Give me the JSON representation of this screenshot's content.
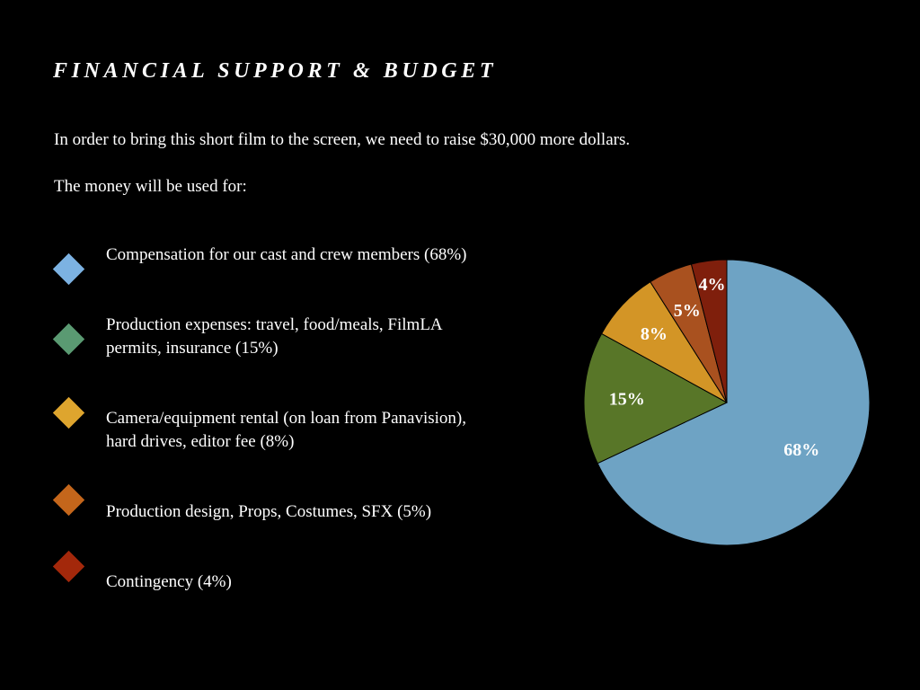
{
  "slide": {
    "title": "FINANCIAL SUPPORT & BUDGET",
    "intro": "In order to bring this short film to the screen, we need to raise $30,000 more dollars.",
    "usage_heading": "The money will be used for:"
  },
  "bullets": [
    {
      "line1": "Compensation for our cast and crew members (68%)",
      "line2": "",
      "color": "#7cb2e2"
    },
    {
      "line1": "Production expenses: travel, food/meals, FilmLA",
      "line2": "permits, insurance (15%)",
      "color": "#5a9a72"
    },
    {
      "line1": "Camera/equipment rental (on loan from Panavision),",
      "line2": "hard drives, editor fee (8%)",
      "color": "#dea52e"
    },
    {
      "line1": "Production design, Props, Costumes, SFX (5%)",
      "line2": "",
      "color": "#c4661b"
    },
    {
      "line1": "Contingency (4%)",
      "line2": "",
      "color": "#a3280b"
    }
  ],
  "chart_data": {
    "type": "pie",
    "title": "",
    "start_angle_deg": 0,
    "direction": "clockwise",
    "slices": [
      {
        "label": "68%",
        "value": 68,
        "color": "#6ea3c4"
      },
      {
        "label": "15%",
        "value": 15,
        "color": "#587628"
      },
      {
        "label": "8%",
        "value": 8,
        "color": "#d39526"
      },
      {
        "label": "5%",
        "value": 5,
        "color": "#a9511f"
      },
      {
        "label": "4%",
        "value": 4,
        "color": "#7f1f0c"
      }
    ]
  }
}
